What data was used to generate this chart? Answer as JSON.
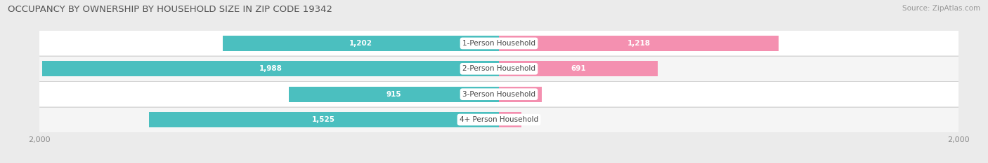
{
  "title": "OCCUPANCY BY OWNERSHIP BY HOUSEHOLD SIZE IN ZIP CODE 19342",
  "source": "Source: ZipAtlas.com",
  "categories": [
    "1-Person Household",
    "2-Person Household",
    "3-Person Household",
    "4+ Person Household"
  ],
  "owner_values": [
    1202,
    1988,
    915,
    1525
  ],
  "renter_values": [
    1218,
    691,
    188,
    99
  ],
  "owner_color": "#4BBFBF",
  "renter_color": "#F490B0",
  "bg_color": "#ebebeb",
  "bar_bg_color": "#f8f8f8",
  "row_bg_color": "#f2f2f2",
  "axis_max": 2000,
  "label_color_owner": "#ffffff",
  "label_color_renter": "#ffffff",
  "label_color_outside": "#888888",
  "title_fontsize": 9.5,
  "source_fontsize": 7.5,
  "bar_label_fontsize": 7.5,
  "category_fontsize": 7.5,
  "legend_fontsize": 8,
  "axis_label_fontsize": 8,
  "inside_threshold": 180
}
